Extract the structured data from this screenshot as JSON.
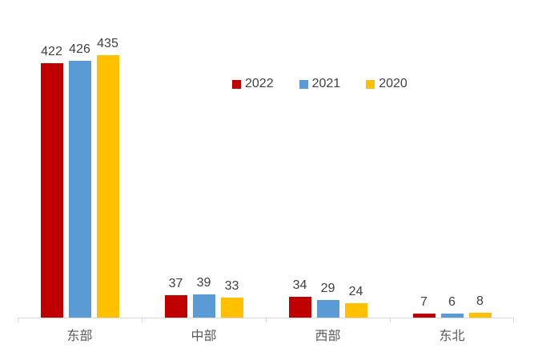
{
  "chart_data": {
    "type": "bar",
    "categories": [
      "东部",
      "中部",
      "西部",
      "东北"
    ],
    "series": [
      {
        "name": "2022",
        "color": "#C00000",
        "values": [
          422,
          37,
          34,
          7
        ]
      },
      {
        "name": "2021",
        "color": "#5B9BD5",
        "values": [
          426,
          39,
          29,
          6
        ]
      },
      {
        "name": "2020",
        "color": "#FFC000",
        "values": [
          435,
          33,
          24,
          8
        ]
      }
    ],
    "title": "",
    "xlabel": "",
    "ylabel": "",
    "ylim": [
      0,
      450
    ],
    "grid": false,
    "legend_position": "top-center",
    "data_labels": true
  },
  "colors": {
    "axis_line": "#D9D9D9",
    "value_label": "#404040",
    "category_label": "#595959",
    "background": "#FFFFFF"
  }
}
